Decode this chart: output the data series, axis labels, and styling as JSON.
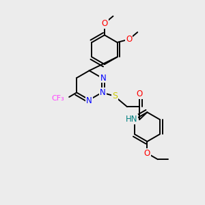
{
  "bg_color": "#ececec",
  "bond_color": "#000000",
  "bond_width": 1.4,
  "atom_colors": {
    "N": "#0000ff",
    "O": "#ff0000",
    "S": "#cccc00",
    "F": "#ff44ff",
    "H": "#008080",
    "C": "#000000"
  },
  "font_size": 8.5
}
